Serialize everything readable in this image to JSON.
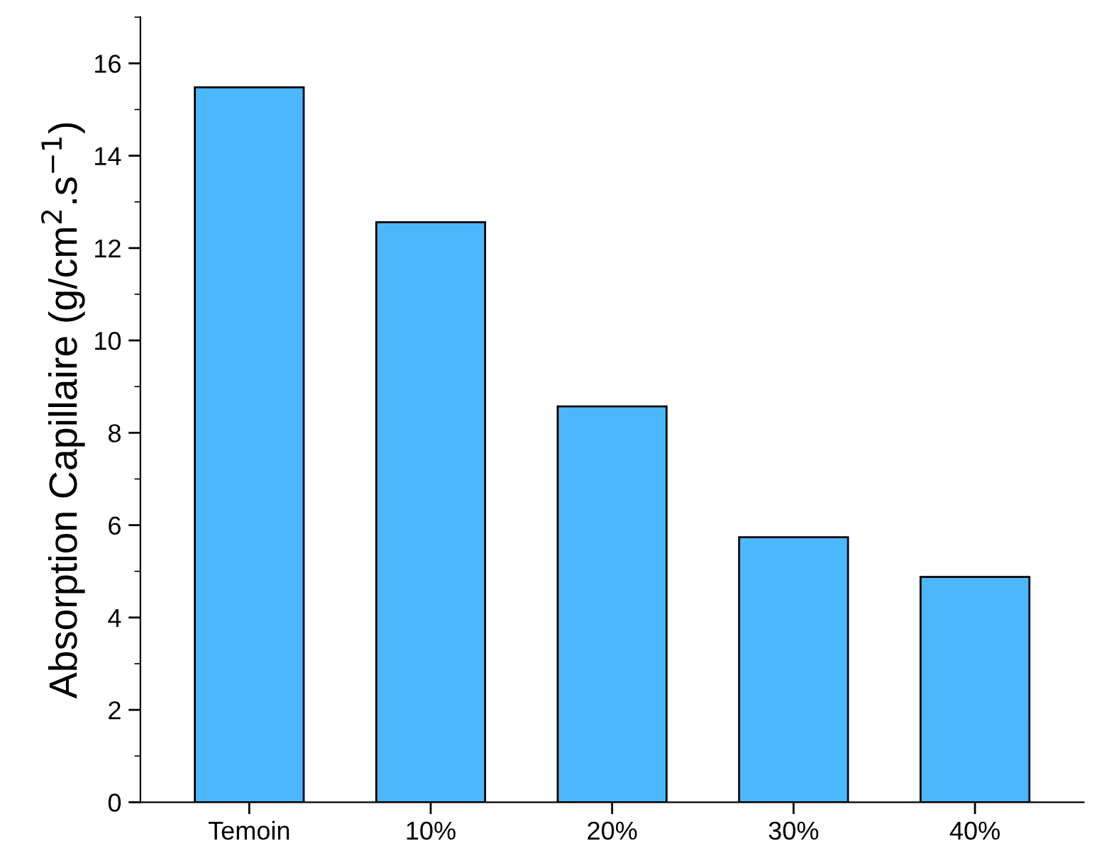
{
  "chart_data": {
    "type": "bar",
    "ylabel": "Absorption Capillaire (g/cm$^{2}$.s$^{−1}$)",
    "categories": [
      "Temoin",
      "10%",
      "20%",
      "30%",
      "40%"
    ],
    "values": [
      15.48,
      12.56,
      8.57,
      5.74,
      4.88
    ],
    "color": "#4cb8fc",
    "ylim": [
      0,
      17
    ],
    "yticks": [
      0,
      2,
      4,
      6,
      8,
      10,
      12,
      14,
      16
    ],
    "grid": false,
    "legend": false
  }
}
